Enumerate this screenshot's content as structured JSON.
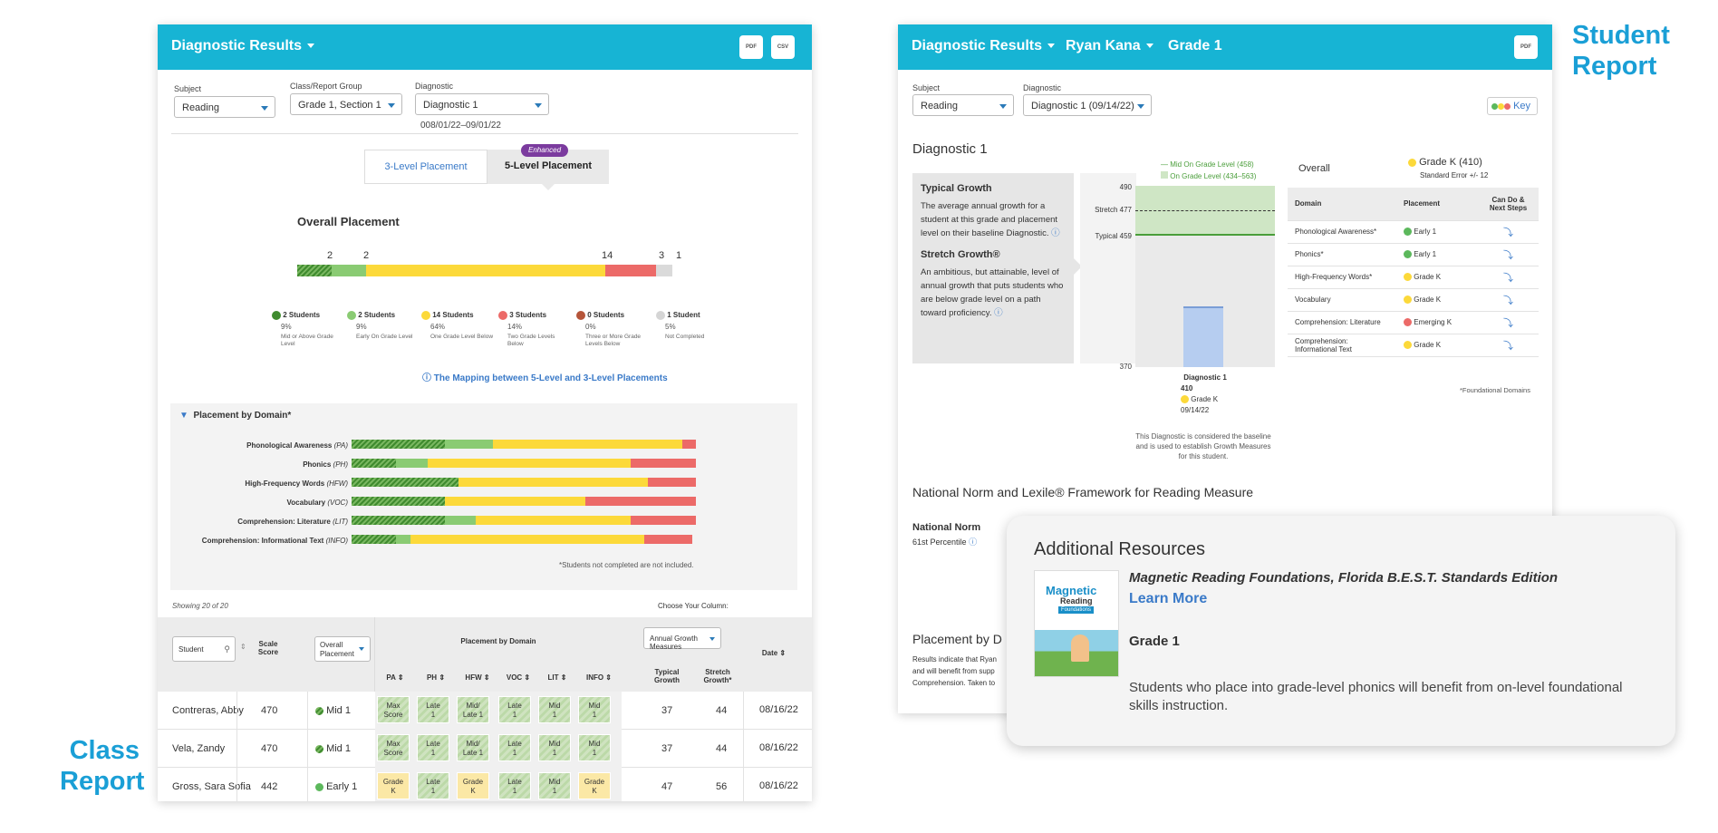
{
  "captions": {
    "student_line1": "Student",
    "student_line2": "Report",
    "class_line1": "Class",
    "class_line2": "Report"
  },
  "class": {
    "title": "Diagnostic Results",
    "pdf": "PDF",
    "csv": "CSV",
    "subject_label": "Subject",
    "subject": "Reading",
    "group_label": "Class/Report Group",
    "group": "Grade 1, Section 1",
    "diag_label": "Diagnostic",
    "diag": "Diagnostic 1",
    "date_range": "008/01/22–09/01/22",
    "tab3": "3-Level Placement",
    "tab5": "5-Level Placement",
    "enhanced": "Enhanced",
    "overall_title": "Overall Placement",
    "counts": [
      "2",
      "2",
      "14",
      "3",
      "1"
    ],
    "legend": [
      {
        "count": "2 Students",
        "pct": "9%",
        "desc": "Mid or Above Grade Level",
        "color": "#3f8b2f"
      },
      {
        "count": "2 Students",
        "pct": "9%",
        "desc": "Early On Grade Level",
        "color": "#8acb73"
      },
      {
        "count": "14 Students",
        "pct": "64%",
        "desc": "One Grade Level Below",
        "color": "#fcd93a"
      },
      {
        "count": "3 Students",
        "pct": "14%",
        "desc": "Two Grade Levels Below",
        "color": "#ec6a68"
      },
      {
        "count": "0 Students",
        "pct": "0%",
        "desc": "Three or More Grade Levels Below",
        "color": "#b5553a"
      },
      {
        "count": "1 Student",
        "pct": "5%",
        "desc": "Not Completed",
        "color": "#d5d5d5"
      }
    ],
    "mapping_link": "The Mapping between 5-Level and 3-Level Placements",
    "domain_title": "Placement by Domain*",
    "domains": [
      {
        "name": "Phonological Awareness",
        "abbr": "(PA)",
        "seg": [
          0.27,
          0.14,
          0.55,
          0.04
        ]
      },
      {
        "name": "Phonics",
        "abbr": "(PH)",
        "seg": [
          0.13,
          0.09,
          0.59,
          0.19
        ]
      },
      {
        "name": "High-Frequency Words",
        "abbr": "(HFW)",
        "seg": [
          0.31,
          0.0,
          0.55,
          0.14
        ]
      },
      {
        "name": "Vocabulary",
        "abbr": "(VOC)",
        "seg": [
          0.27,
          0.0,
          0.41,
          0.32
        ]
      },
      {
        "name": "Comprehension: Literature",
        "abbr": "(LIT)",
        "seg": [
          0.27,
          0.09,
          0.45,
          0.19
        ]
      },
      {
        "name": "Comprehension: Informational Text",
        "abbr": "(INFO)",
        "seg": [
          0.13,
          0.04,
          0.68,
          0.14
        ]
      }
    ],
    "domain_note": "*Students not completed are not included.",
    "showing": "Showing 20 of 20",
    "choose_col": "Choose Your Column:",
    "col_select": "Annual Growth Measures",
    "headers": {
      "student": "Student",
      "scale": "Scale Score",
      "overall": "Overall Placement",
      "pbd": "Placement by Domain",
      "pa": "PA",
      "ph": "PH",
      "hfw": "HFW",
      "voc": "VOC",
      "lit": "LIT",
      "info": "INFO",
      "typical": "Typical Growth",
      "stretch": "Stretch Growth*",
      "date": "Date"
    },
    "rows": [
      {
        "name": "Contreras, Abby",
        "score": "470",
        "place": "Mid 1",
        "hatch": true,
        "cells": [
          [
            "Max",
            "Score"
          ],
          [
            "Late",
            "1"
          ],
          [
            "Mid/",
            "Late 1"
          ],
          [
            "Late",
            "1"
          ],
          [
            "Mid",
            "1"
          ],
          [
            "Mid",
            "1"
          ]
        ],
        "typ": "37",
        "str": "44",
        "date": "08/16/22"
      },
      {
        "name": "Vela, Zandy",
        "score": "470",
        "place": "Mid 1",
        "hatch": true,
        "cells": [
          [
            "Max",
            "Score"
          ],
          [
            "Late",
            "1"
          ],
          [
            "Mid/",
            "Late 1"
          ],
          [
            "Late",
            "1"
          ],
          [
            "Mid",
            "1"
          ],
          [
            "Mid",
            "1"
          ]
        ],
        "typ": "37",
        "str": "44",
        "date": "08/16/22"
      },
      {
        "name": "Gross, Sara Sofia",
        "score": "442",
        "place": "Early 1",
        "hatch": false,
        "cells": [
          [
            "Grade",
            "K"
          ],
          [
            "Late",
            "1"
          ],
          [
            "Grade",
            "K"
          ],
          [
            "Late",
            "1"
          ],
          [
            "Mid",
            "1"
          ],
          [
            "Grade",
            "K"
          ]
        ],
        "typ": "47",
        "str": "56",
        "date": "08/16/22"
      }
    ]
  },
  "student": {
    "title": "Diagnostic Results",
    "name": "Ryan Kana",
    "grade": "Grade 1",
    "pdf": "PDF",
    "subject_label": "Subject",
    "subject": "Reading",
    "diag_label": "Diagnostic",
    "diag": "Diagnostic 1 (09/14/22)",
    "key": "Key",
    "section_title": "Diagnostic 1",
    "typical_title": "Typical Growth",
    "typical_text": "The average annual growth for a student at this grade and placement level on their baseline Diagnostic.",
    "stretch_title": "Stretch Growth®",
    "stretch_text": "An ambitious, but attainable, level of annual growth that puts students who are below grade level on a path toward proficiency.",
    "legend_mid": "Mid On Grade Level (458)",
    "legend_on": "On Grade Level (434–563)",
    "y_top": "490",
    "y_stretch": "Stretch 477",
    "y_typical": "Typical 459",
    "y_bottom": "370",
    "bar_label": "Diagnostic 1",
    "bar_score": "410",
    "bar_grade": "Grade K",
    "bar_date": "09/14/22",
    "baseline_note": "This Diagnostic is considered the baseline and is used to establish Growth Measures for this student.",
    "overall_label": "Overall",
    "overall_grade": "Grade K (410)",
    "std_err": "Standard Error +/- 12",
    "table_head": {
      "domain": "Domain",
      "placement": "Placement",
      "cando": "Can Do & Next Steps"
    },
    "table": [
      {
        "domain": "Phonological Awareness*",
        "place": "Early 1",
        "color": "#5cb85c"
      },
      {
        "domain": "Phonics*",
        "place": "Early 1",
        "color": "#5cb85c"
      },
      {
        "domain": "High-Frequency Words*",
        "place": "Grade K",
        "color": "#fcd93a"
      },
      {
        "domain": "Vocabulary",
        "place": "Grade K",
        "color": "#fcd93a"
      },
      {
        "domain": "Comprehension: Literature",
        "place": "Emerging K",
        "color": "#ec6a68"
      },
      {
        "domain": "Comprehension: Informational Text",
        "place": "Grade K",
        "color": "#fcd93a"
      }
    ],
    "found_note": "*Foundational Domains",
    "norm_title": "National Norm and Lexile® Framework for Reading Measure",
    "norm_label": "National Norm",
    "norm_value": "61st Percentile",
    "pbd_title": "Placement by D",
    "results_text": [
      "Results indicate that Ryan",
      "and will benefit from supp",
      "Comprehension. Taken to"
    ]
  },
  "resources": {
    "title": "Additional Resources",
    "book_title": "Magnetic Reading Foundations, Florida B.E.S.T. Standards Edition",
    "learn_more": "Learn More",
    "grade": "Grade 1",
    "text": "Students who place into grade-level phonics will benefit from on-level foundational skills instruction.",
    "cover_title": "Magnetic",
    "cover_sub": "Reading",
    "cover_sub2": "Foundations"
  }
}
